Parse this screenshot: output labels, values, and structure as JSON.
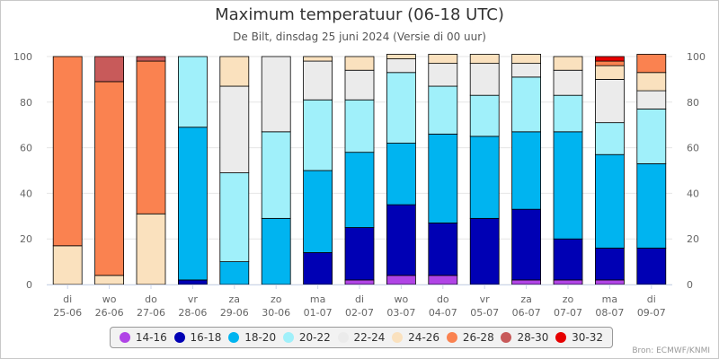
{
  "title": "Maximum temperatuur (06-18 UTC)",
  "subtitle": "De Bilt, dinsdag 25 juni 2024 (Versie di 00 uur)",
  "source": "Bron: ECMWF/KNMI",
  "chart_data": {
    "type": "bar",
    "stacked": true,
    "ylim": [
      0,
      100
    ],
    "yticks": [
      0,
      20,
      40,
      60,
      80,
      100
    ],
    "y_axis_both_sides": true,
    "categories": [
      {
        "day": "di",
        "date": "25-06"
      },
      {
        "day": "wo",
        "date": "26-06"
      },
      {
        "day": "do",
        "date": "27-06"
      },
      {
        "day": "vr",
        "date": "28-06"
      },
      {
        "day": "za",
        "date": "29-06"
      },
      {
        "day": "zo",
        "date": "30-06"
      },
      {
        "day": "ma",
        "date": "01-07"
      },
      {
        "day": "di",
        "date": "02-07"
      },
      {
        "day": "wo",
        "date": "03-07"
      },
      {
        "day": "do",
        "date": "04-07"
      },
      {
        "day": "vr",
        "date": "05-07"
      },
      {
        "day": "za",
        "date": "06-07"
      },
      {
        "day": "zo",
        "date": "07-07"
      },
      {
        "day": "ma",
        "date": "08-07"
      },
      {
        "day": "di",
        "date": "09-07"
      }
    ],
    "series": [
      {
        "name": "14-16",
        "color": "#b044e6",
        "values": [
          0,
          0,
          0,
          0,
          0,
          0,
          0,
          2,
          4,
          4,
          0,
          2,
          2,
          2,
          0
        ]
      },
      {
        "name": "16-18",
        "color": "#0000b4",
        "values": [
          0,
          0,
          0,
          2,
          0,
          0,
          14,
          23,
          31,
          23,
          29,
          31,
          18,
          14,
          16
        ]
      },
      {
        "name": "18-20",
        "color": "#00b4f0",
        "values": [
          0,
          0,
          0,
          67,
          10,
          29,
          36,
          33,
          27,
          39,
          36,
          34,
          47,
          41,
          37
        ]
      },
      {
        "name": "20-22",
        "color": "#a0f0fa",
        "values": [
          0,
          0,
          0,
          31,
          39,
          38,
          31,
          23,
          31,
          21,
          18,
          24,
          16,
          14,
          24
        ]
      },
      {
        "name": "22-24",
        "color": "#ebebeb",
        "values": [
          0,
          0,
          0,
          0,
          38,
          33,
          17,
          13,
          6,
          10,
          14,
          6,
          11,
          19,
          8
        ]
      },
      {
        "name": "24-26",
        "color": "#fae1be",
        "values": [
          17,
          4,
          31,
          0,
          13,
          0,
          2,
          6,
          2,
          4,
          4,
          4,
          6,
          6,
          8
        ]
      },
      {
        "name": "26-28",
        "color": "#fa8250",
        "values": [
          83,
          85,
          67,
          0,
          0,
          0,
          0,
          0,
          0,
          0,
          0,
          0,
          0,
          2,
          8
        ]
      },
      {
        "name": "28-30",
        "color": "#c85a5a",
        "values": [
          0,
          11,
          2,
          0,
          0,
          0,
          0,
          0,
          0,
          0,
          0,
          0,
          0,
          0,
          0
        ]
      },
      {
        "name": "30-32",
        "color": "#e60000",
        "values": [
          0,
          0,
          0,
          0,
          0,
          0,
          0,
          0,
          0,
          0,
          0,
          0,
          0,
          2,
          0
        ]
      }
    ]
  }
}
